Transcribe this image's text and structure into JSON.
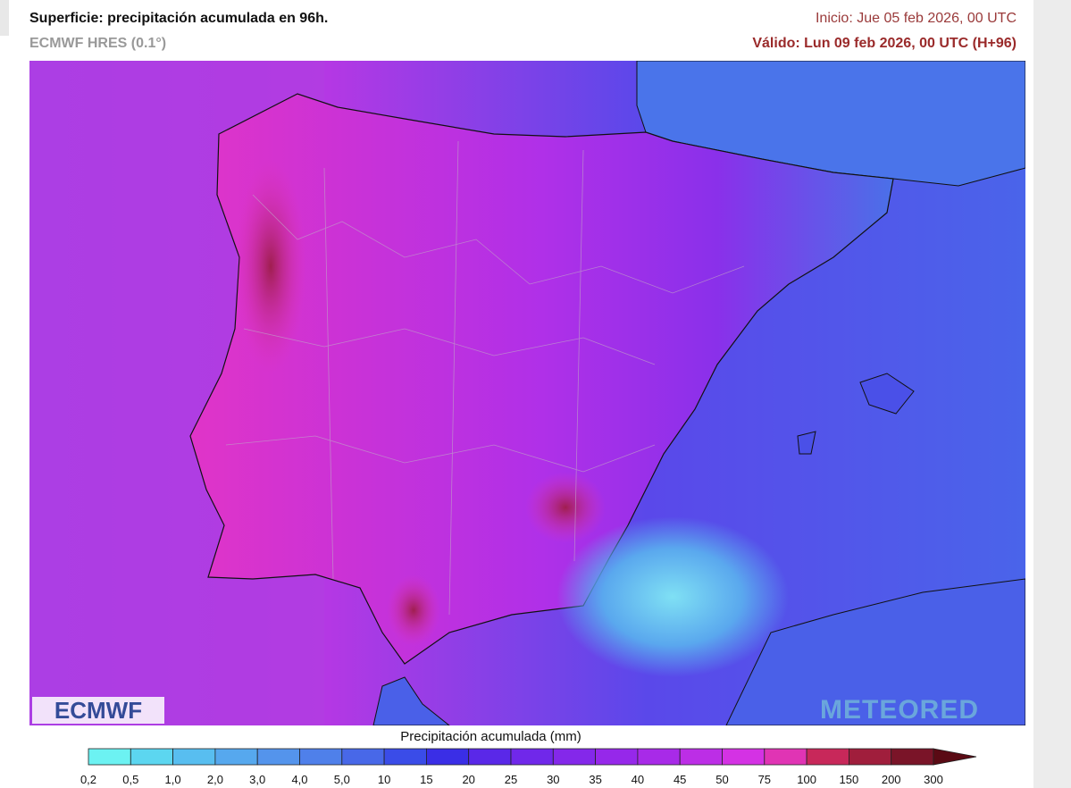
{
  "header": {
    "title": "Superficie: precipitación acumulada en 96h.",
    "model": "ECMWF HRES (0.1°)",
    "init": "Inicio: Jue 05 feb 2026, 00 UTC",
    "valid": "Válido: Lun 09 feb 2026, 00 UTC (H+96)"
  },
  "logos": {
    "left": "ECMWF",
    "right": "METEORED"
  },
  "legend": {
    "title": "Precipitación acumulada (mm)",
    "labels": [
      "0,2",
      "0,5",
      "1,0",
      "2,0",
      "3,0",
      "4,0",
      "5,0",
      "10",
      "15",
      "20",
      "25",
      "30",
      "35",
      "40",
      "45",
      "50",
      "75",
      "100",
      "150",
      "200",
      "300"
    ],
    "colors": [
      "#6cf2f2",
      "#5cd6f0",
      "#58bef0",
      "#56a8ee",
      "#5494ec",
      "#4f80ea",
      "#4868e8",
      "#3a4ce8",
      "#3a2ee6",
      "#5a28e8",
      "#7028ea",
      "#8428ea",
      "#9628ea",
      "#a82ae8",
      "#bc2ee6",
      "#d432e4",
      "#e034b4",
      "#c8285a",
      "#a01e3c",
      "#7a1428"
    ],
    "overflow_color": "#5a0a14"
  }
}
